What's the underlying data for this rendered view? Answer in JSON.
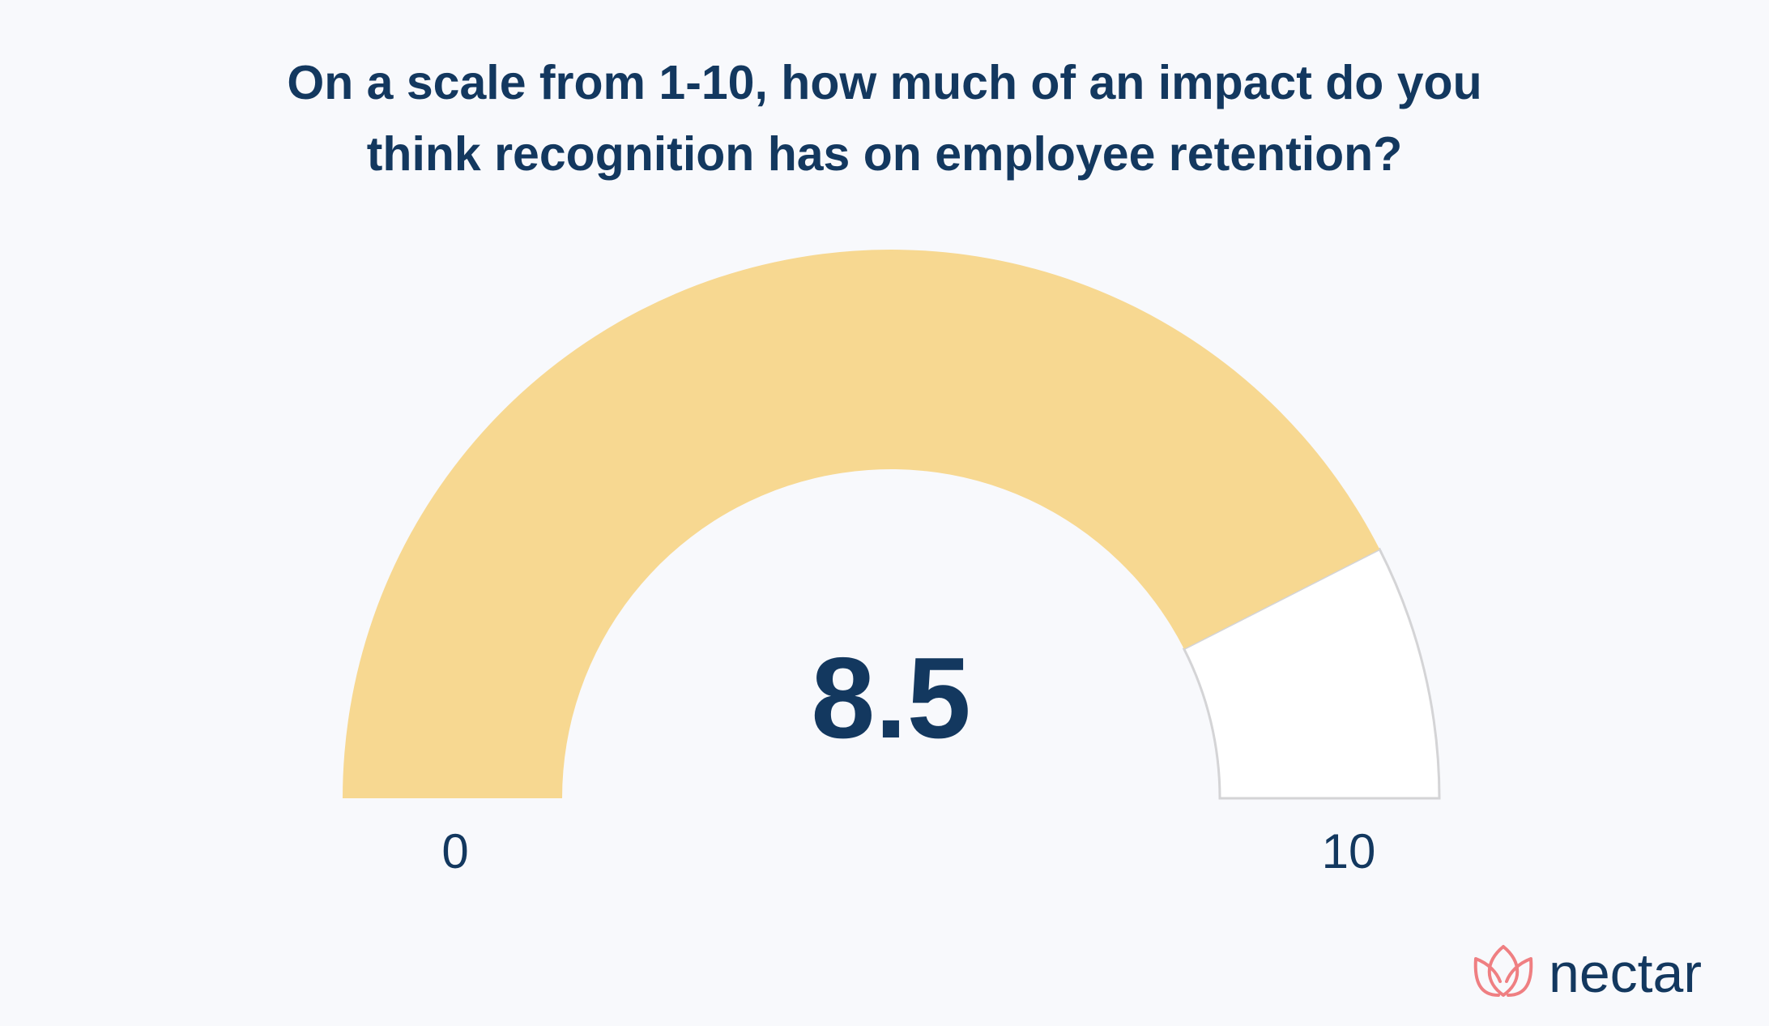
{
  "title_lines": [
    "On a scale from 1-10, how much of an impact do you",
    "think recognition has on employee retention?"
  ],
  "chart_data": {
    "type": "gauge",
    "title": "On a scale from 1-10, how much of an impact do you think recognition has on employee retention?",
    "value": 8.5,
    "value_label": "8.5",
    "min": 0,
    "max": 10,
    "min_label": "0",
    "max_label": "10",
    "fill_color": "#f7d891",
    "track_color": "#ffffff",
    "track_stroke": "#d4d4d6"
  },
  "brand": {
    "name": "nectar",
    "logo_color": "#ef7f82",
    "text_color": "#13385f"
  },
  "colors": {
    "background": "#f8f9fc",
    "text": "#13385f"
  }
}
